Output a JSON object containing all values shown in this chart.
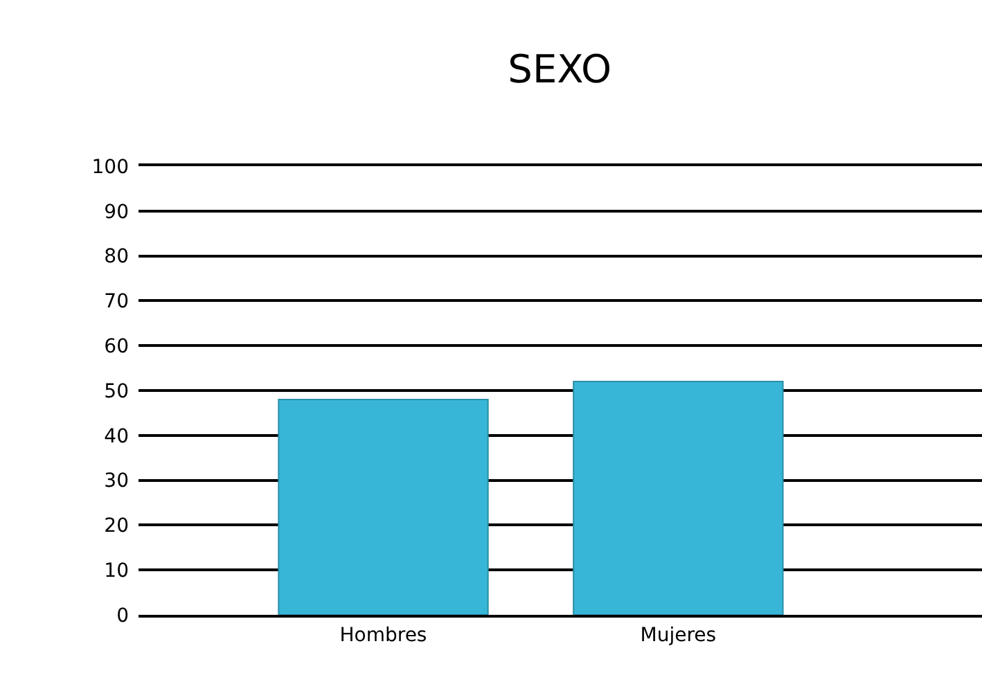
{
  "chart_data": {
    "type": "bar",
    "title": "SEXO",
    "categories": [
      "Hombres",
      "Mujeres"
    ],
    "values": [
      48,
      52
    ],
    "color": "#38b6d8",
    "ylim": [
      0,
      100
    ],
    "yticks": [
      0,
      10,
      20,
      30,
      40,
      50,
      60,
      70,
      80,
      90,
      100
    ],
    "grid": "y"
  }
}
